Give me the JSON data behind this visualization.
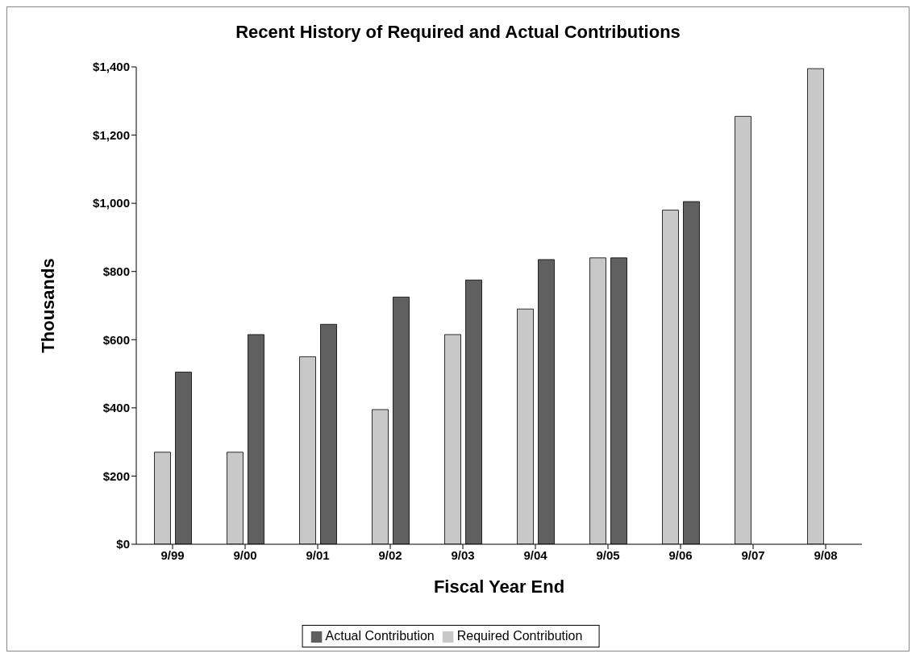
{
  "chart_data": {
    "type": "bar",
    "title": "Recent History of Required and Actual Contributions",
    "xlabel": "Fiscal Year End",
    "ylabel": "Thousands",
    "categories": [
      "9/99",
      "9/00",
      "9/01",
      "9/02",
      "9/03",
      "9/04",
      "9/05",
      "9/06",
      "9/07",
      "9/08"
    ],
    "series": [
      {
        "name": "Required Contribution",
        "color": "#c8c8c8",
        "values": [
          270,
          270,
          550,
          395,
          615,
          690,
          840,
          980,
          1255,
          1395
        ]
      },
      {
        "name": "Actual Contribution",
        "color": "#606060",
        "values": [
          505,
          615,
          645,
          725,
          775,
          835,
          840,
          1005,
          0,
          0
        ]
      }
    ],
    "ylim": [
      0,
      1400
    ],
    "yticks": [
      {
        "value": 0,
        "label": "$0"
      },
      {
        "value": 200,
        "label": "$200"
      },
      {
        "value": 400,
        "label": "$400"
      },
      {
        "value": 600,
        "label": "$600"
      },
      {
        "value": 800,
        "label": "$800"
      },
      {
        "value": 1000,
        "label": "$1,000"
      },
      {
        "value": 1200,
        "label": "$1,200"
      },
      {
        "value": 1400,
        "label": "$1,400"
      }
    ],
    "grid": false,
    "legend": "bottom"
  }
}
